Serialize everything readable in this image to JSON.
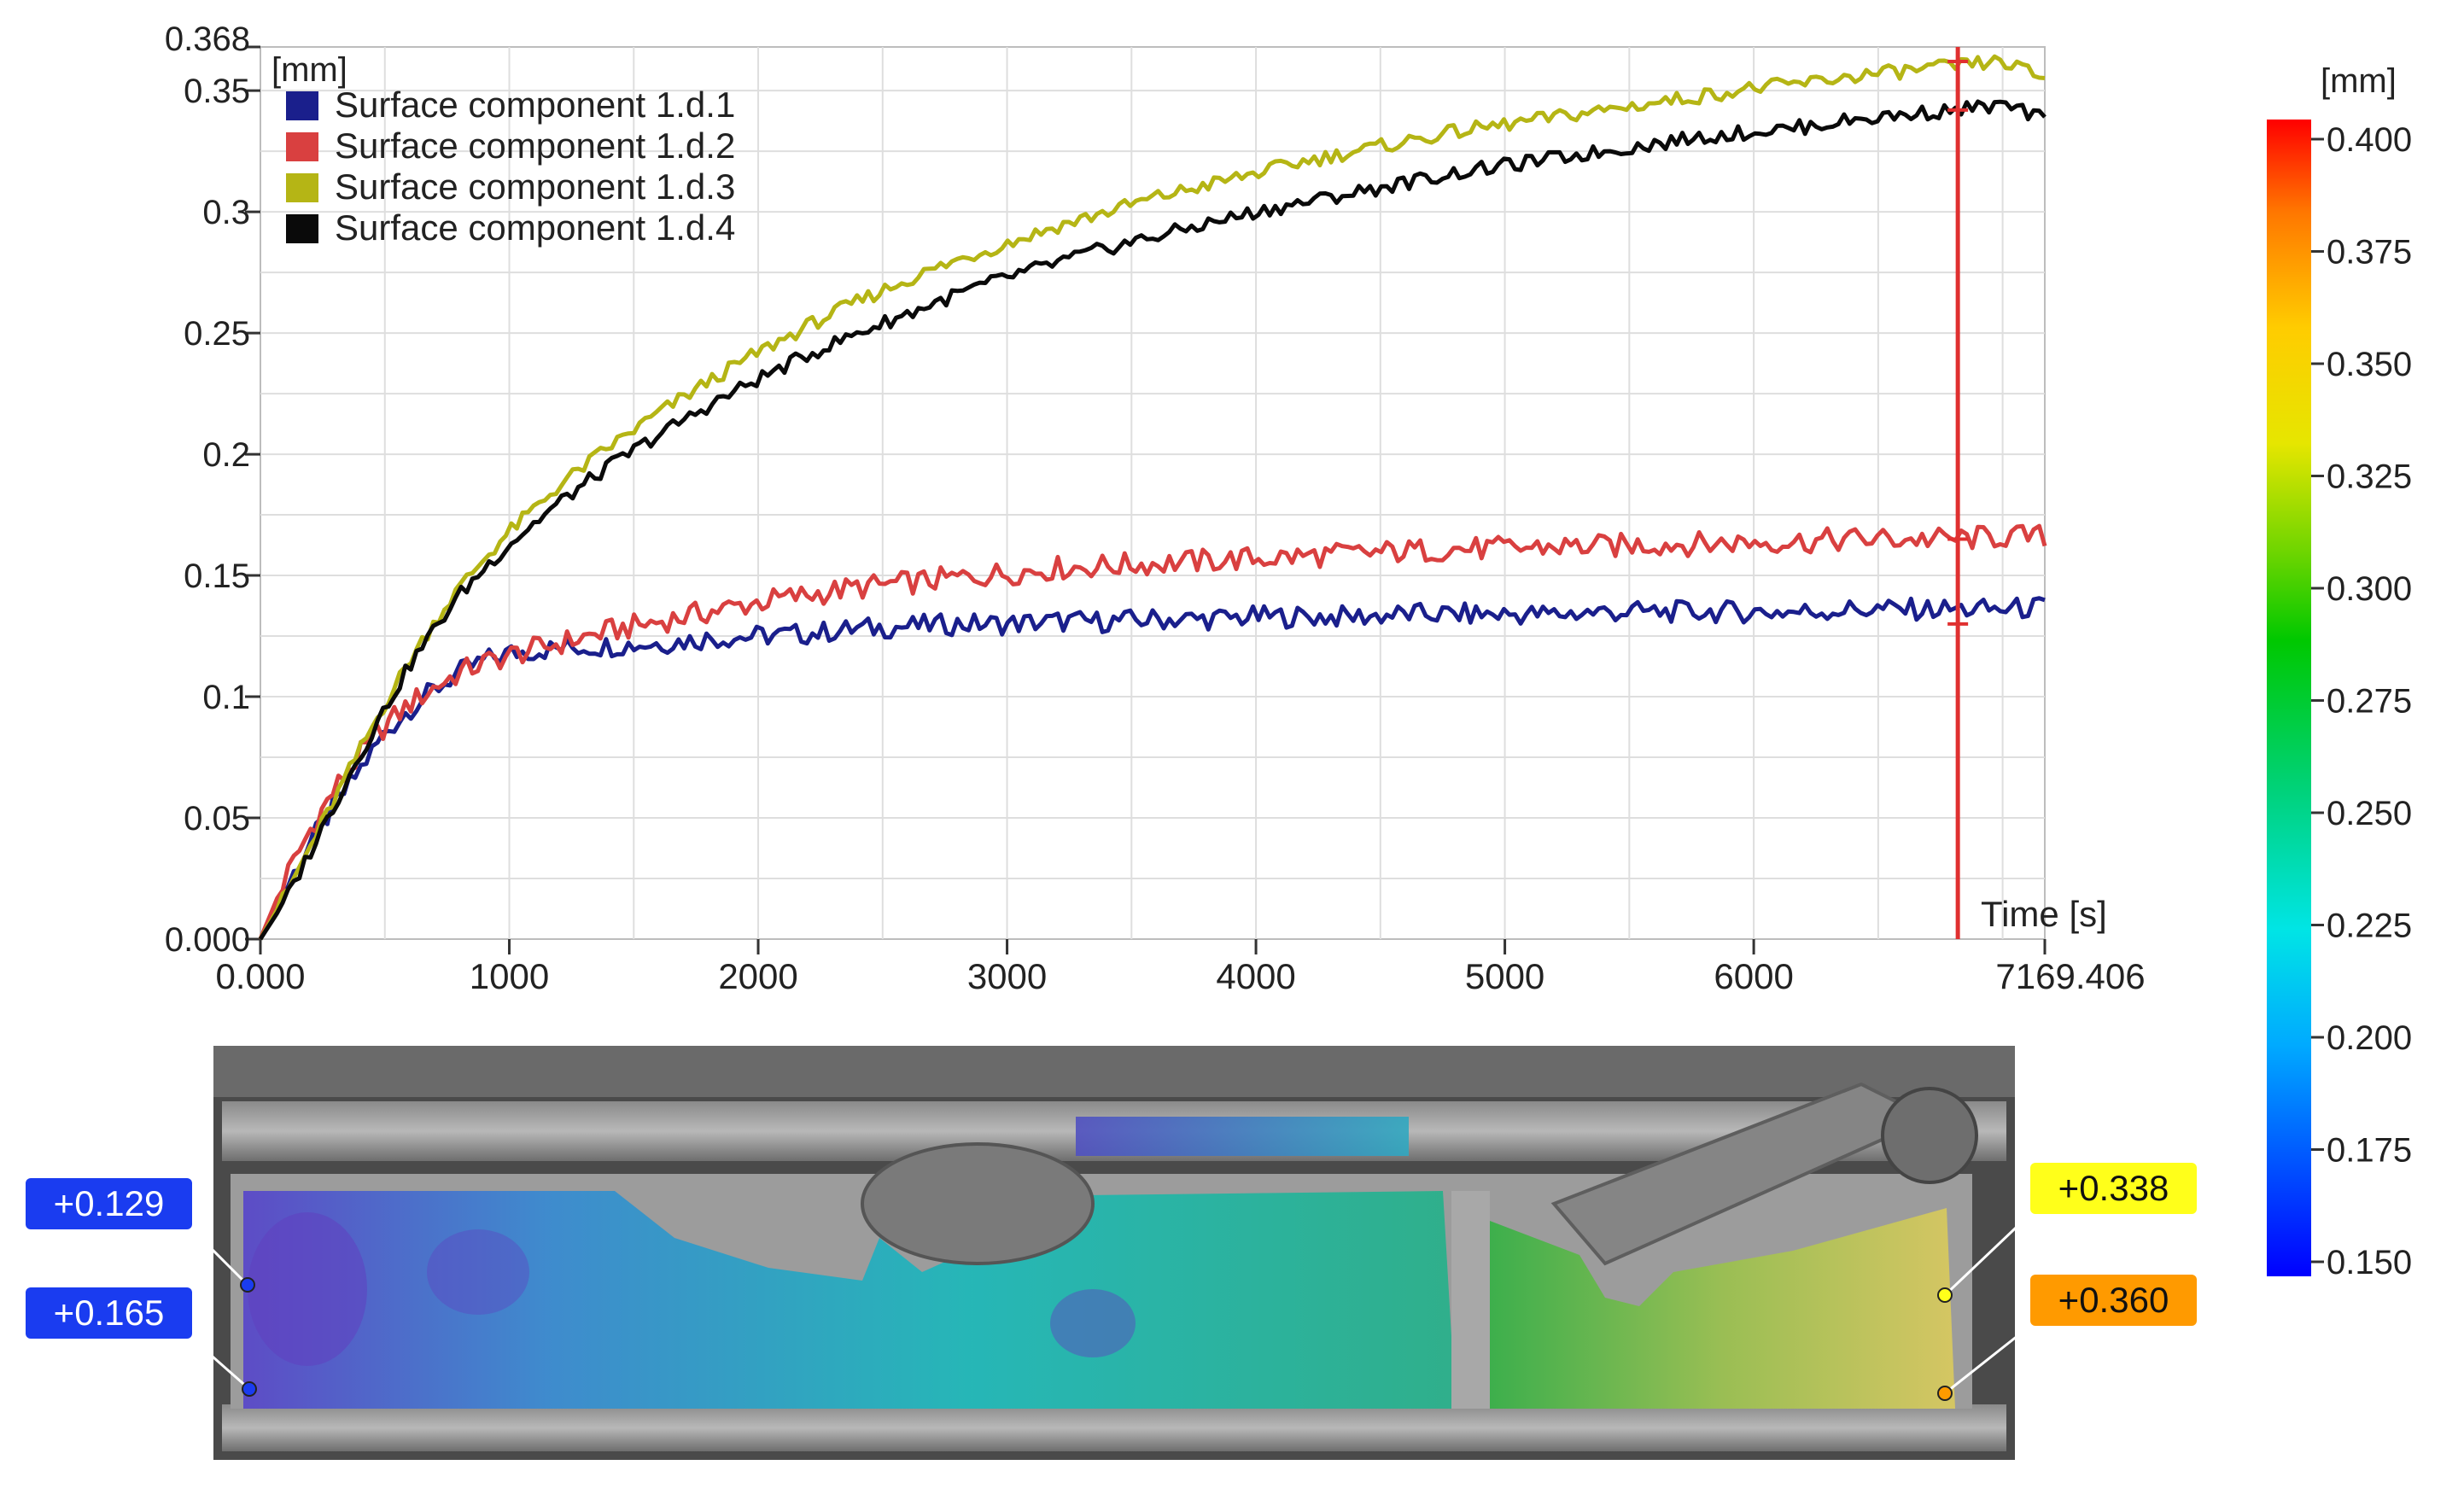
{
  "chart_data": {
    "type": "line",
    "y_unit": "[mm]",
    "xlabel": "Time [s]",
    "xlim": [
      0,
      7169.406
    ],
    "ylim": [
      0,
      0.368
    ],
    "x_ticks": [
      0,
      1000,
      2000,
      3000,
      4000,
      5000,
      6000,
      7169.406
    ],
    "x_tick_labels": [
      "0.000",
      "1000",
      "2000",
      "3000",
      "4000",
      "5000",
      "6000",
      "7169.406"
    ],
    "y_ticks": [
      0,
      0.05,
      0.1,
      0.15,
      0.2,
      0.25,
      0.3,
      0.35,
      0.368
    ],
    "y_tick_labels": [
      "0.000",
      "0.05",
      "0.1",
      "0.15",
      "0.2",
      "0.25",
      "0.3",
      "0.35",
      "0.368"
    ],
    "grid": true,
    "legend_position": "top-left",
    "cursor_x": 6820,
    "series": [
      {
        "name": "Surface component 1.d.1",
        "color": "#1a1f8c",
        "x": [
          0,
          100,
          200,
          300,
          400,
          500,
          600,
          700,
          800,
          900,
          1000,
          1200,
          1400,
          1600,
          1800,
          2000,
          2200,
          2400,
          2600,
          2800,
          3000,
          3200,
          3400,
          3600,
          3800,
          4000,
          4200,
          4400,
          4600,
          4800,
          5000,
          5200,
          5400,
          5600,
          5800,
          6000,
          6200,
          6400,
          6600,
          6800,
          7000,
          7169
        ],
        "y": [
          0.0,
          0.02,
          0.04,
          0.055,
          0.07,
          0.085,
          0.095,
          0.103,
          0.11,
          0.115,
          0.118,
          0.12,
          0.121,
          0.122,
          0.124,
          0.125,
          0.126,
          0.128,
          0.129,
          0.13,
          0.13,
          0.131,
          0.131,
          0.132,
          0.132,
          0.133,
          0.133,
          0.133,
          0.134,
          0.134,
          0.134,
          0.134,
          0.135,
          0.135,
          0.135,
          0.135,
          0.135,
          0.136,
          0.136,
          0.136,
          0.136,
          0.137
        ]
      },
      {
        "name": "Surface component 1.d.2",
        "color": "#d94040",
        "x": [
          0,
          100,
          200,
          300,
          400,
          500,
          600,
          700,
          800,
          900,
          1000,
          1200,
          1400,
          1600,
          1800,
          2000,
          2200,
          2400,
          2600,
          2800,
          3000,
          3200,
          3400,
          3600,
          3800,
          4000,
          4200,
          4400,
          4600,
          4800,
          5000,
          5200,
          5400,
          5600,
          5800,
          6000,
          6200,
          6400,
          6600,
          6800,
          7000,
          7169
        ],
        "y": [
          0.0,
          0.025,
          0.045,
          0.062,
          0.076,
          0.088,
          0.097,
          0.104,
          0.11,
          0.114,
          0.117,
          0.122,
          0.127,
          0.131,
          0.135,
          0.139,
          0.142,
          0.145,
          0.147,
          0.149,
          0.151,
          0.153,
          0.154,
          0.155,
          0.156,
          0.157,
          0.158,
          0.159,
          0.16,
          0.161,
          0.161,
          0.162,
          0.162,
          0.163,
          0.163,
          0.164,
          0.164,
          0.165,
          0.165,
          0.165,
          0.166,
          0.166
        ]
      },
      {
        "name": "Surface component 1.d.3",
        "color": "#b5b515",
        "x": [
          0,
          100,
          200,
          300,
          400,
          500,
          600,
          700,
          800,
          900,
          1000,
          1200,
          1400,
          1600,
          1800,
          2000,
          2200,
          2400,
          2600,
          2800,
          3000,
          3200,
          3400,
          3600,
          3800,
          4000,
          4200,
          4400,
          4600,
          4800,
          5000,
          5200,
          5400,
          5600,
          5800,
          6000,
          6200,
          6400,
          6600,
          6800,
          7000,
          7169
        ],
        "y": [
          0.0,
          0.018,
          0.038,
          0.058,
          0.078,
          0.097,
          0.115,
          0.131,
          0.145,
          0.157,
          0.168,
          0.187,
          0.203,
          0.217,
          0.23,
          0.242,
          0.253,
          0.263,
          0.272,
          0.28,
          0.287,
          0.294,
          0.3,
          0.306,
          0.311,
          0.316,
          0.321,
          0.325,
          0.329,
          0.333,
          0.336,
          0.339,
          0.342,
          0.345,
          0.348,
          0.351,
          0.353,
          0.356,
          0.358,
          0.36,
          0.362,
          0.355
        ]
      },
      {
        "name": "Surface component 1.d.4",
        "color": "#0a0a0a",
        "x": [
          0,
          100,
          200,
          300,
          400,
          500,
          600,
          700,
          800,
          900,
          1000,
          1200,
          1400,
          1600,
          1800,
          2000,
          2200,
          2400,
          2600,
          2800,
          3000,
          3200,
          3400,
          3600,
          3800,
          4000,
          4200,
          4400,
          4600,
          4800,
          5000,
          5200,
          5400,
          5600,
          5800,
          6000,
          6200,
          6400,
          6600,
          6800,
          7000,
          7169
        ],
        "y": [
          0.0,
          0.016,
          0.036,
          0.056,
          0.076,
          0.095,
          0.113,
          0.128,
          0.142,
          0.153,
          0.163,
          0.18,
          0.195,
          0.208,
          0.22,
          0.231,
          0.241,
          0.25,
          0.258,
          0.266,
          0.273,
          0.279,
          0.285,
          0.29,
          0.295,
          0.3,
          0.304,
          0.308,
          0.312,
          0.316,
          0.319,
          0.322,
          0.325,
          0.328,
          0.331,
          0.333,
          0.335,
          0.338,
          0.34,
          0.342,
          0.344,
          0.338
        ]
      }
    ]
  },
  "colorbar": {
    "unit": "[mm]",
    "labels": [
      "0.400",
      "0.375",
      "0.350",
      "0.325",
      "0.300",
      "0.275",
      "0.250",
      "0.225",
      "0.200",
      "0.175",
      "0.150"
    ]
  },
  "image_labels": [
    {
      "text": "+0.129",
      "color": "#1a3cf0",
      "text_color": "#ffffff"
    },
    {
      "text": "+0.165",
      "color": "#1a3cf0",
      "text_color": "#ffffff"
    },
    {
      "text": "+0.338",
      "color": "#ffff1a",
      "text_color": "#111111"
    },
    {
      "text": "+0.360",
      "color": "#ff9a00",
      "text_color": "#111111"
    }
  ]
}
